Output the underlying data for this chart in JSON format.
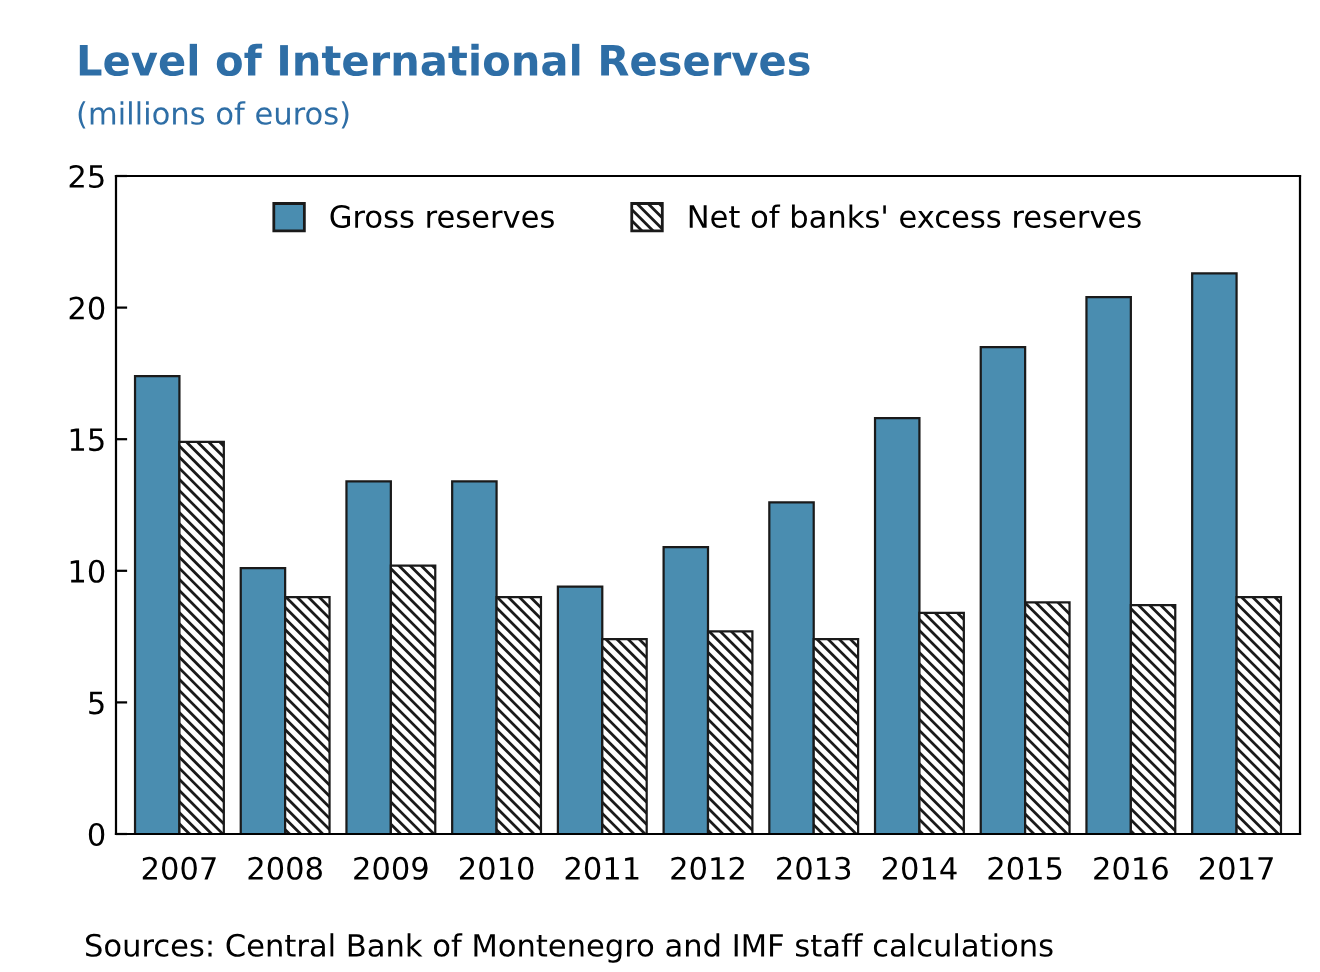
{
  "chart_data": {
    "type": "bar",
    "title": "Level of International Reserves",
    "subtitle": "(millions of euros)",
    "categories": [
      "2007",
      "2008",
      "2009",
      "2010",
      "2011",
      "2012",
      "2013",
      "2014",
      "2015",
      "2016",
      "2017"
    ],
    "series": [
      {
        "name": "Gross reserves",
        "color": "#4a8db0",
        "values": [
          17.4,
          10.1,
          13.4,
          13.4,
          9.4,
          10.9,
          12.6,
          15.8,
          18.5,
          20.4,
          21.3
        ]
      },
      {
        "name": "Net of banks' excess reserves",
        "color": "#1a1a1a",
        "values": [
          14.9,
          9.0,
          10.2,
          9.0,
          7.4,
          7.7,
          7.4,
          8.4,
          8.8,
          8.7,
          9.0
        ]
      }
    ],
    "ylim": [
      0,
      25
    ],
    "yticks": [
      0,
      5,
      10,
      15,
      20,
      25
    ],
    "grid": false,
    "legend": "top",
    "annotations": [
      "Sources: Central Bank of Montenegro and IMF staff calculations"
    ]
  }
}
